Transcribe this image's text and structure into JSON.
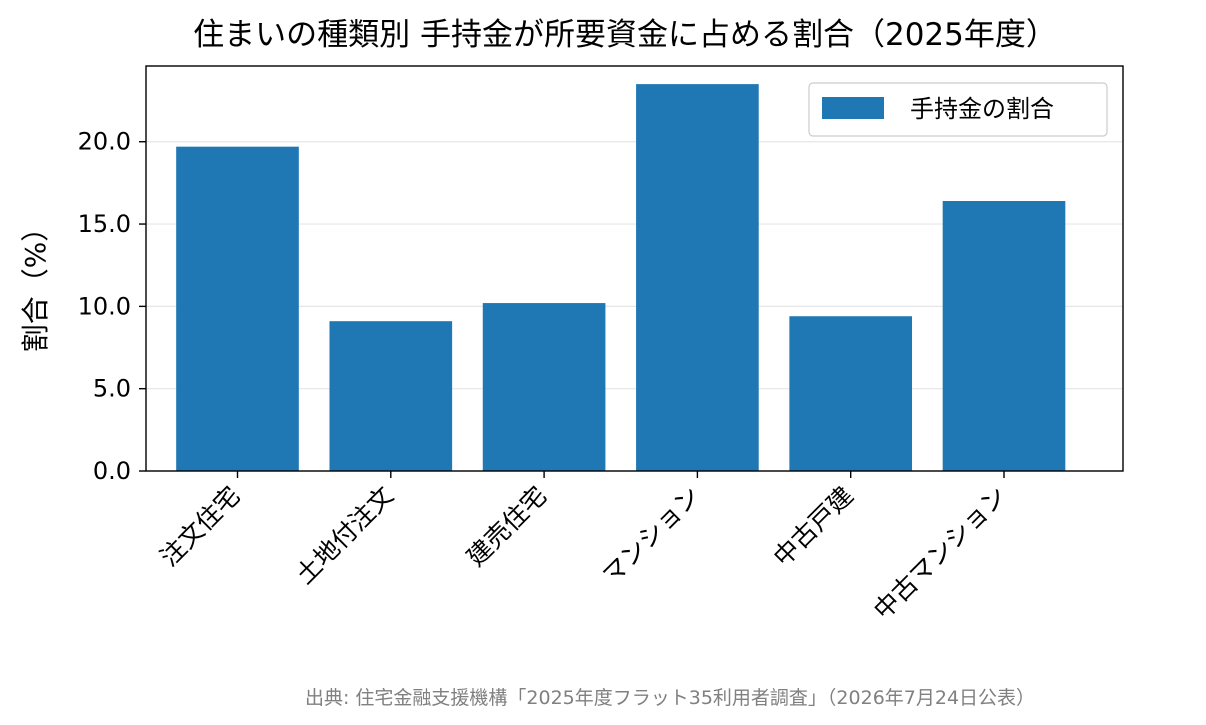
{
  "chart_data": {
    "type": "bar",
    "title": "住まいの種類別 手持金が所要資金に占める割合（2025年度）",
    "xlabel": "",
    "ylabel": "割合（%）",
    "categories": [
      "注文住宅",
      "土地付注文",
      "建売住宅",
      "マンション",
      "中古戸建",
      "中古マンション"
    ],
    "series": [
      {
        "name": "手持金の割合",
        "values": [
          19.7,
          9.1,
          10.2,
          23.5,
          9.4,
          16.4
        ],
        "color": "#1f77b4"
      }
    ],
    "yticks": [
      "0.0",
      "5.0",
      "10.0",
      "15.0",
      "20.0"
    ],
    "ytick_values": [
      0,
      5,
      10,
      15,
      20
    ],
    "ylim": [
      0,
      24.6
    ],
    "grid": "y",
    "legend_position": "top-right"
  },
  "source": "出典: 住宅金融支援機構「2025年度フラット35利用者調査」（2026年7月24日公表）"
}
